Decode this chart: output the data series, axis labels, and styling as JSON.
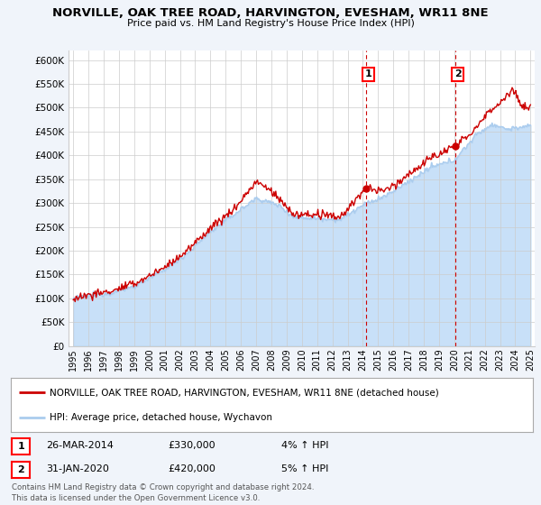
{
  "title": "NORVILLE, OAK TREE ROAD, HARVINGTON, EVESHAM, WR11 8NE",
  "subtitle": "Price paid vs. HM Land Registry's House Price Index (HPI)",
  "ylim": [
    0,
    620000
  ],
  "yticks": [
    0,
    50000,
    100000,
    150000,
    200000,
    250000,
    300000,
    350000,
    400000,
    450000,
    500000,
    550000,
    600000
  ],
  "xlim_start": 1994.7,
  "xlim_end": 2025.3,
  "hpi_color": "#aaccee",
  "hpi_fill_color": "#ddeeff",
  "price_color": "#cc0000",
  "marker1_x": 2014.23,
  "marker1_y": 330000,
  "marker2_x": 2020.08,
  "marker2_y": 420000,
  "legend_label1": "NORVILLE, OAK TREE ROAD, HARVINGTON, EVESHAM, WR11 8NE (detached house)",
  "legend_label2": "HPI: Average price, detached house, Wychavon",
  "table_row1": [
    "1",
    "26-MAR-2014",
    "£330,000",
    "4% ↑ HPI"
  ],
  "table_row2": [
    "2",
    "31-JAN-2020",
    "£420,000",
    "5% ↑ HPI"
  ],
  "footnote": "Contains HM Land Registry data © Crown copyright and database right 2024.\nThis data is licensed under the Open Government Licence v3.0.",
  "bg_color": "#f0f4fa",
  "plot_bg_color": "#ffffff",
  "grid_color": "#cccccc"
}
